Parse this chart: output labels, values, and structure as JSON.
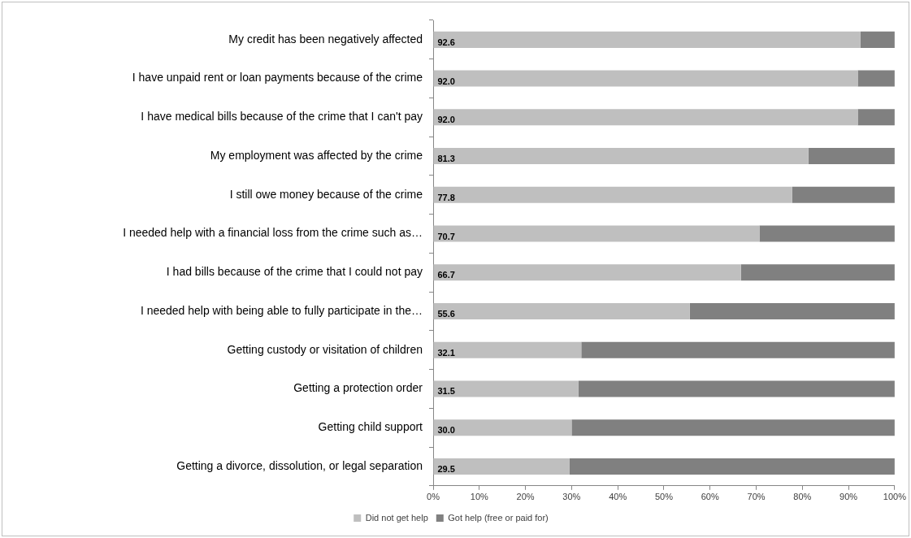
{
  "chart_data": {
    "type": "bar",
    "orientation": "horizontal",
    "stacked": true,
    "categories": [
      "My credit has been negatively affected",
      "I have unpaid rent or loan payments because of the crime",
      "I have medical bills because of the crime that I can't pay",
      "My employment was affected by the crime",
      "I still owe money because of the crime",
      "I needed help with a financial loss from the crime such as…",
      "I had bills because of the crime that I could not pay",
      "I needed help with being able to fully participate in the…",
      "Getting custody or visitation of children",
      "Getting a protection order",
      "Getting child support",
      "Getting a divorce, dissolution, or legal separation"
    ],
    "series": [
      {
        "name": "Did not get help",
        "color": "#bfbfbf",
        "values": [
          92.6,
          92.0,
          92.0,
          81.3,
          77.8,
          70.7,
          66.7,
          55.6,
          32.1,
          31.5,
          30.0,
          29.5
        ],
        "value_labels": [
          "92.6",
          "92.0",
          "92.0",
          "81.3",
          "77.8",
          "70.7",
          "66.7",
          "55.6",
          "32.1",
          "31.5",
          "30.0",
          "29.5"
        ]
      },
      {
        "name": "Got help (free or paid for)",
        "color": "#808080",
        "values": [
          7.4,
          8.0,
          8.0,
          18.7,
          22.2,
          29.3,
          33.3,
          44.4,
          67.9,
          68.5,
          70.0,
          70.5
        ]
      }
    ],
    "xlim": [
      0,
      100
    ],
    "xticks": [
      {
        "value": 0,
        "label": "0%"
      },
      {
        "value": 10,
        "label": "10%"
      },
      {
        "value": 20,
        "label": "20%"
      },
      {
        "value": 30,
        "label": "30%"
      },
      {
        "value": 40,
        "label": "40%"
      },
      {
        "value": 50,
        "label": "50%"
      },
      {
        "value": 60,
        "label": "60%"
      },
      {
        "value": 70,
        "label": "70%"
      },
      {
        "value": 80,
        "label": "80%"
      },
      {
        "value": 90,
        "label": "90%"
      },
      {
        "value": 100,
        "label": "100%"
      }
    ],
    "grid": false,
    "legend": "bottom"
  }
}
